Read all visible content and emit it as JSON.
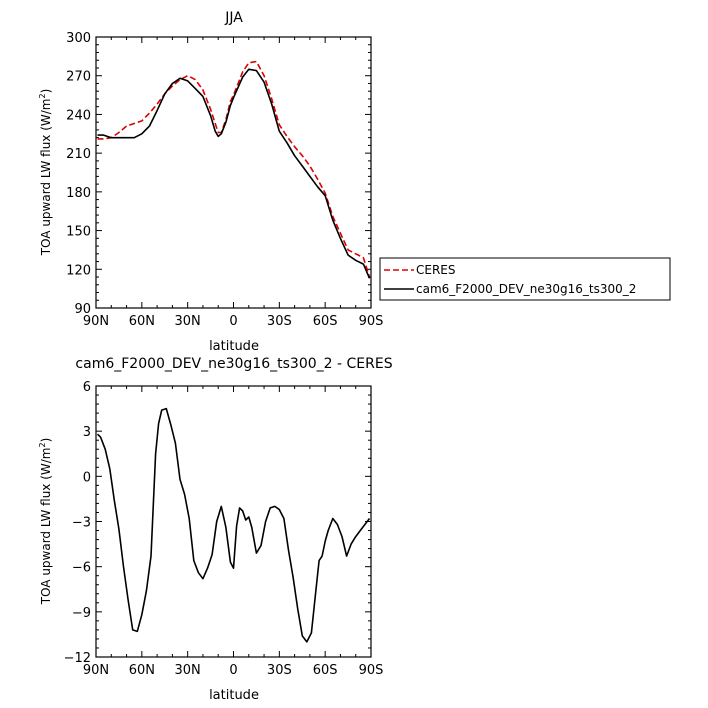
{
  "chart_data": [
    {
      "type": "line",
      "title": "JJA",
      "xlabel": "latitude",
      "ylabel": "TOA upward LW flux (W/m",
      "ylabel_sup": "2",
      "ylabel_end": ")",
      "xlim": [
        90,
        -90
      ],
      "ylim": [
        90,
        300
      ],
      "xticks": [
        90,
        60,
        30,
        0,
        -30,
        -60,
        -90
      ],
      "xtick_labels": [
        "90N",
        "60N",
        "30N",
        "0",
        "30S",
        "60S",
        "90S"
      ],
      "yticks": [
        90,
        120,
        150,
        180,
        210,
        240,
        270,
        300
      ],
      "yticks_labels": [
        "90",
        "120",
        "150",
        "180",
        "210",
        "240",
        "270",
        "300"
      ],
      "legend": {
        "placement": "right-outside"
      },
      "series": [
        {
          "name": "CERES",
          "color": "#dd0000",
          "dash": true,
          "x": [
            89,
            85,
            80,
            75,
            70,
            65,
            60,
            55,
            50,
            45,
            40,
            35,
            30,
            25,
            20,
            15,
            12,
            10,
            8,
            5,
            2,
            0,
            -3,
            -6,
            -10,
            -15,
            -20,
            -25,
            -30,
            -35,
            -40,
            -45,
            -50,
            -55,
            -60,
            -65,
            -70,
            -75,
            -80,
            -85,
            -89
          ],
          "y": [
            221,
            221,
            222,
            226,
            231,
            233,
            235,
            241,
            248,
            256,
            262,
            267,
            270,
            267,
            259,
            244,
            233,
            226,
            226,
            236,
            250,
            255,
            264,
            273,
            280,
            281,
            270,
            252,
            232,
            223,
            215,
            208,
            200,
            190,
            179,
            161,
            148,
            135,
            132,
            129,
            114
          ]
        },
        {
          "name": "cam6_F2000_DEV_ne30g16_ts300_2",
          "color": "#000000",
          "dash": false,
          "x": [
            89,
            85,
            80,
            75,
            70,
            65,
            60,
            55,
            50,
            45,
            40,
            35,
            30,
            25,
            20,
            15,
            12,
            10,
            8,
            5,
            2,
            0,
            -3,
            -6,
            -10,
            -15,
            -20,
            -25,
            -30,
            -35,
            -40,
            -45,
            -50,
            -55,
            -60,
            -65,
            -70,
            -75,
            -80,
            -85,
            -89
          ],
          "y": [
            224,
            224,
            222,
            222,
            222,
            222,
            225,
            231,
            243,
            256,
            264,
            268,
            266,
            260,
            254,
            239,
            227,
            223,
            225,
            234,
            247,
            253,
            261,
            269,
            275,
            274,
            265,
            248,
            227,
            218,
            208,
            200,
            192,
            184,
            177,
            158,
            144,
            131,
            127,
            124,
            113
          ]
        }
      ]
    },
    {
      "type": "line",
      "title": "cam6_F2000_DEV_ne30g16_ts300_2 - CERES",
      "xlabel": "latitude",
      "ylabel": "TOA upward LW flux (W/m",
      "ylabel_sup": "2",
      "ylabel_end": ")",
      "xlim": [
        90,
        -90
      ],
      "ylim": [
        -12,
        6
      ],
      "xticks": [
        90,
        60,
        30,
        0,
        -30,
        -60,
        -90
      ],
      "xtick_labels": [
        "90N",
        "60N",
        "30N",
        "0",
        "30S",
        "60S",
        "90S"
      ],
      "yticks": [
        -12,
        -9,
        -6,
        -3,
        0,
        3,
        6
      ],
      "yticks_labels": [
        "−12",
        "−9",
        "−6",
        "−3",
        "0",
        "3",
        "6"
      ],
      "series": [
        {
          "color": "#000000",
          "x": [
            89,
            87,
            84,
            81,
            78,
            75,
            72,
            69,
            66,
            63,
            60,
            57,
            54,
            51,
            49,
            47,
            44,
            41,
            38,
            35,
            32,
            29,
            26,
            23,
            20,
            17,
            14,
            11,
            8,
            5,
            2,
            0,
            -2,
            -4,
            -6,
            -8,
            -10,
            -12,
            -15,
            -18,
            -21,
            -24,
            -27,
            -30,
            -33,
            -36,
            -39,
            -42,
            -45,
            -48,
            -51,
            -54,
            -56,
            -58,
            -60,
            -62,
            -65,
            -68,
            -71,
            -74,
            -77,
            -80,
            -83,
            -86,
            -89
          ],
          "y": [
            2.8,
            2.6,
            1.8,
            0.5,
            -1.6,
            -3.5,
            -6.0,
            -8.2,
            -10.2,
            -10.3,
            -9.2,
            -7.6,
            -5.3,
            1.5,
            3.5,
            4.4,
            4.5,
            3.4,
            2.2,
            -0.2,
            -1.2,
            -2.8,
            -5.6,
            -6.4,
            -6.8,
            -6.1,
            -5.2,
            -3.0,
            -2.0,
            -3.4,
            -5.7,
            -6.1,
            -3.3,
            -2.1,
            -2.3,
            -2.9,
            -2.7,
            -3.4,
            -5.1,
            -4.6,
            -3.0,
            -2.1,
            -2.0,
            -2.2,
            -2.8,
            -4.9,
            -6.7,
            -8.8,
            -10.6,
            -11.0,
            -10.4,
            -7.5,
            -5.6,
            -5.3,
            -4.3,
            -3.6,
            -2.8,
            -3.2,
            -4.0,
            -5.3,
            -4.5,
            -4.0,
            -3.6,
            -3.2,
            -2.8
          ]
        }
      ]
    }
  ]
}
